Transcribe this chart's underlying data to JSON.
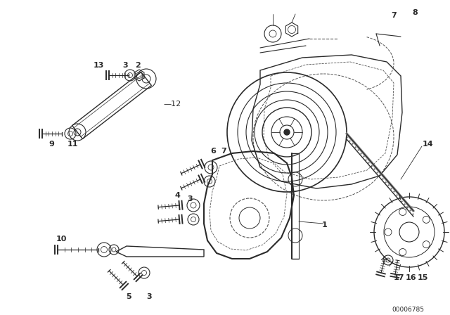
{
  "bg_color": "#ffffff",
  "line_color": "#2a2a2a",
  "dashed_color": "#555555",
  "fig_width": 6.4,
  "fig_height": 4.48,
  "dpi": 100,
  "diagram_id": "00006785"
}
